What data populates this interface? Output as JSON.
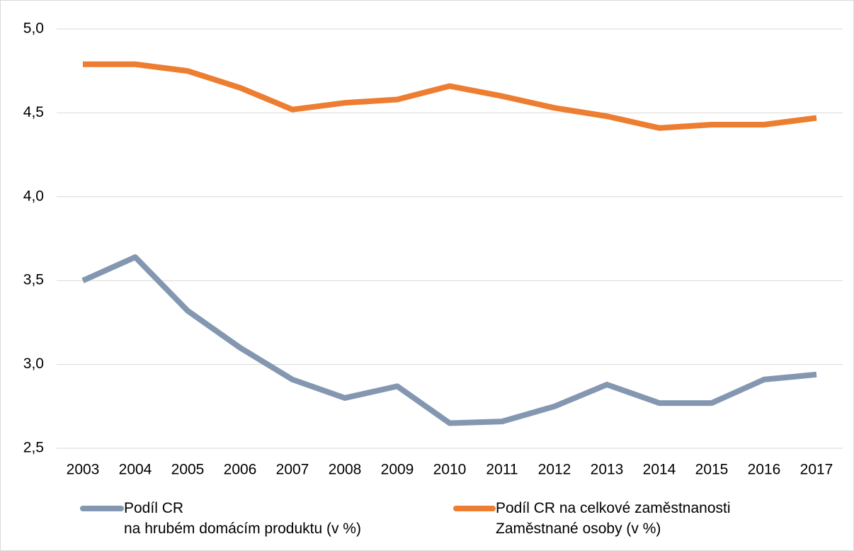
{
  "chart_data": {
    "type": "line",
    "categories": [
      "2003",
      "2004",
      "2005",
      "2006",
      "2007",
      "2008",
      "2009",
      "2010",
      "2011",
      "2012",
      "2013",
      "2014",
      "2015",
      "2016",
      "2017"
    ],
    "series": [
      {
        "name": "Podíl CR\nna hrubém domácím produktu (v %)",
        "color": "#8497b0",
        "values": [
          3.5,
          3.64,
          3.32,
          3.1,
          2.91,
          2.8,
          2.87,
          2.65,
          2.66,
          2.75,
          2.88,
          2.77,
          2.77,
          2.91,
          2.94
        ]
      },
      {
        "name": "Podíl CR na celkové zaměstnanosti\nZaměstnané osoby (v %)",
        "color": "#ed7d31",
        "values": [
          4.79,
          4.79,
          4.75,
          4.65,
          4.52,
          4.56,
          4.58,
          4.66,
          4.6,
          4.53,
          4.48,
          4.41,
          4.43,
          4.43,
          4.47
        ]
      }
    ],
    "ylim": [
      2.5,
      5.0
    ],
    "yticks": [
      {
        "value": 2.5,
        "label": "2,5"
      },
      {
        "value": 3.0,
        "label": "3,0"
      },
      {
        "value": 3.5,
        "label": "3,5"
      },
      {
        "value": 4.0,
        "label": "4,0"
      },
      {
        "value": 4.5,
        "label": "4,5"
      },
      {
        "value": 5.0,
        "label": "5,0"
      }
    ],
    "grid": true
  }
}
